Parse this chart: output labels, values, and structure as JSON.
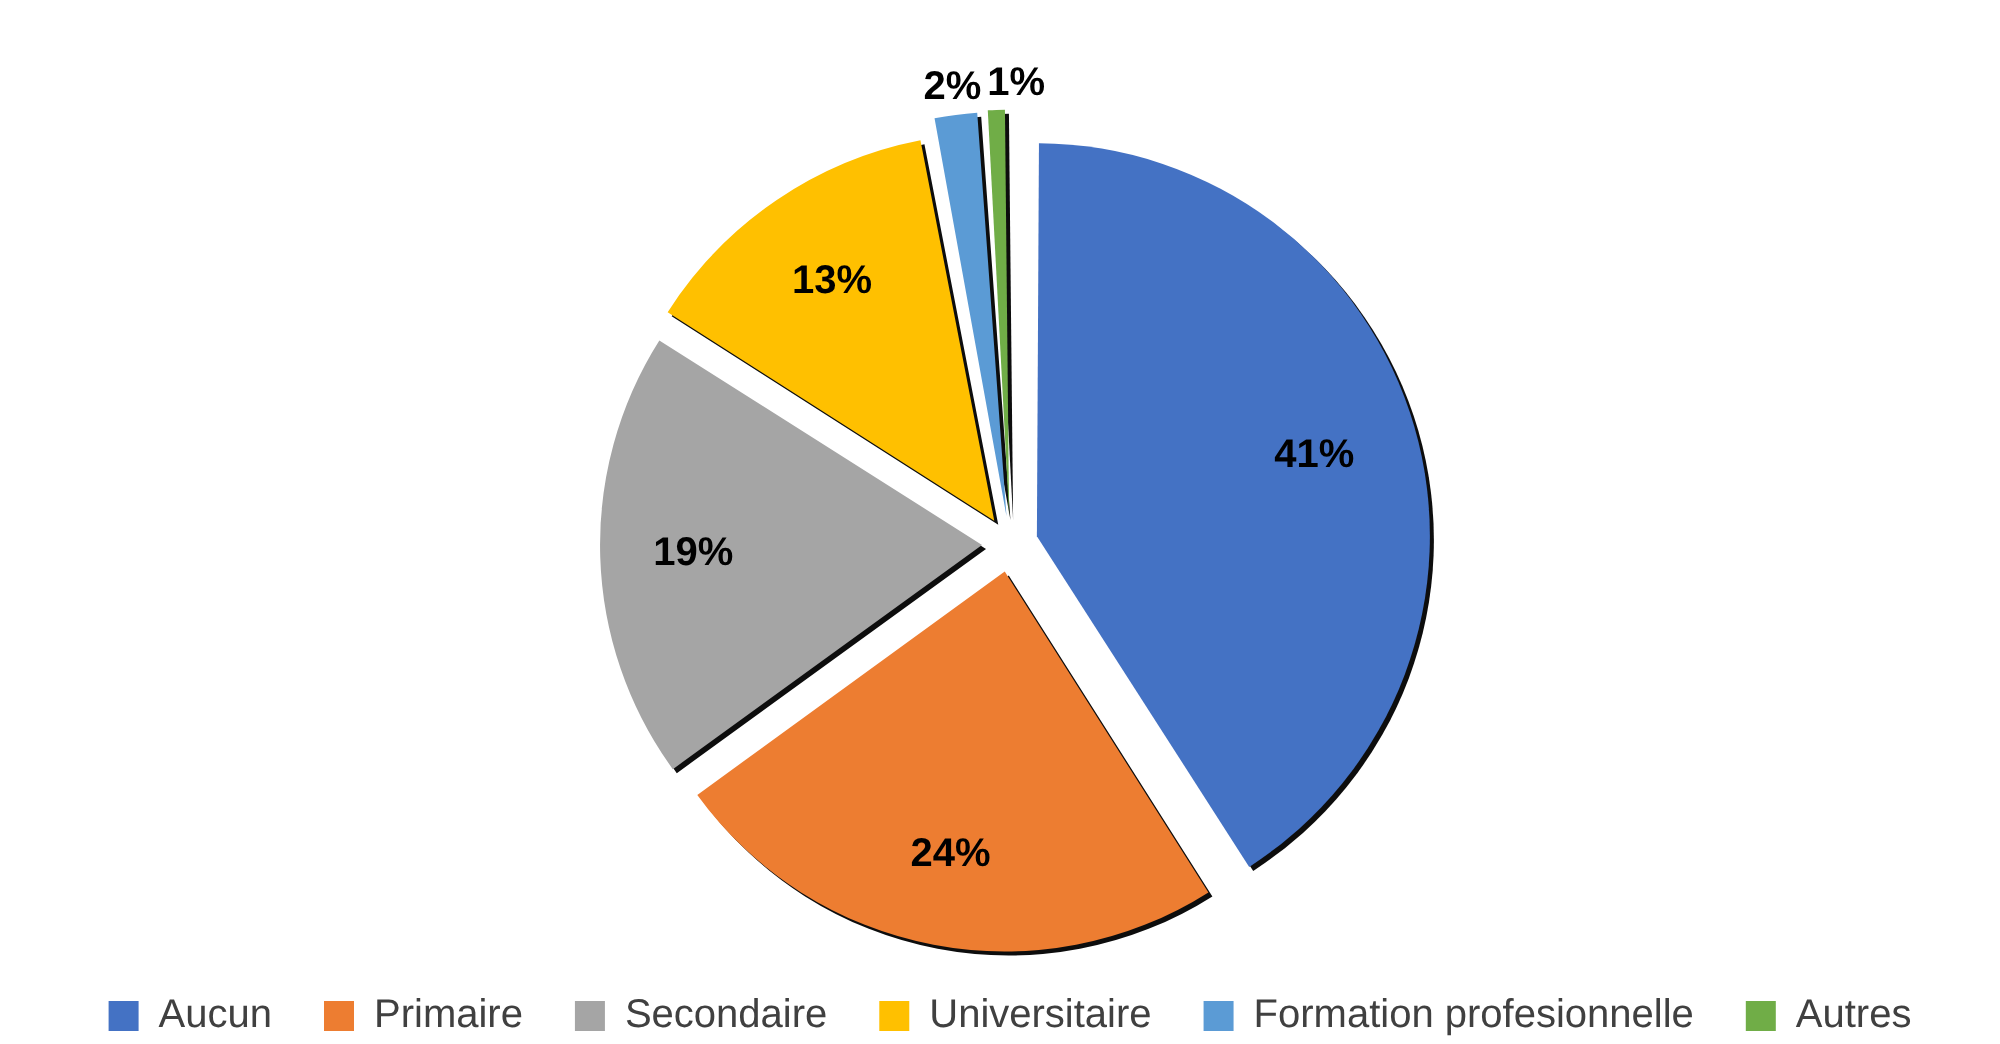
{
  "chart_data": {
    "type": "pie",
    "categories": [
      "Aucun",
      "Primaire",
      "Secondaire",
      "Universitaire",
      "Formation profesionnelle",
      "Autres"
    ],
    "values": [
      41,
      24,
      19,
      13,
      2,
      1
    ],
    "colors": [
      "#4472c4",
      "#ed7d31",
      "#a5a5a5",
      "#ffc000",
      "#5b9bd5",
      "#70ad47"
    ],
    "value_labels": [
      "41%",
      "24%",
      "19%",
      "13%",
      "2%",
      "1%"
    ],
    "legend": "bottom"
  }
}
